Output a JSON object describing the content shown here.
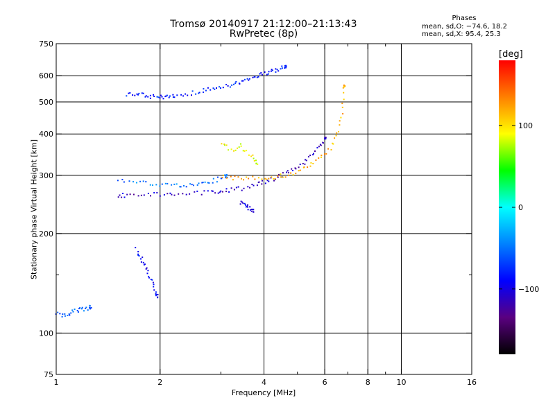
{
  "chart_data": {
    "type": "scatter",
    "title": "Tromsø 20140917 21:12:00–21:13:43",
    "subtitle": "RwPretec (8p)",
    "xlabel": "Frequency [MHz]",
    "ylabel": "Stationary phase Virtual Height [km]",
    "x_scale": "log",
    "y_scale": "log",
    "xlim": [
      1,
      16
    ],
    "ylim": [
      75,
      750
    ],
    "x_ticks": [
      1,
      2,
      4,
      6,
      8,
      10,
      16
    ],
    "x_tick_labels": [
      "1",
      "2",
      "4",
      "6",
      "8",
      "10",
      "16"
    ],
    "x_minor_ticks": [
      3,
      5,
      7,
      9
    ],
    "y_ticks": [
      75,
      100,
      200,
      300,
      400,
      500,
      600,
      750
    ],
    "y_tick_labels": [
      "75",
      "100",
      "200",
      "300",
      "400",
      "500",
      "600",
      "750"
    ],
    "y_minor_ticks": [
      150
    ],
    "grid": true,
    "phase_box": {
      "title": "Phases",
      "line_o": "mean, sd,O: −74.6, 18.2",
      "line_x": "mean, sd,X:  95.4, 25.3"
    },
    "colorbar": {
      "label": "[deg]",
      "min": -180,
      "max": 180,
      "ticks": [
        100,
        0,
        -100
      ],
      "tick_labels": [
        "100",
        "0",
        "−100"
      ],
      "colors": [
        "#000000",
        "#5a0080",
        "#0000ff",
        "#0080ff",
        "#00ffff",
        "#00ff00",
        "#ffff00",
        "#ff8000",
        "#ff0000"
      ]
    },
    "series": [
      {
        "x": [
          1.0,
          1.05,
          1.1,
          1.15,
          1.2,
          1.25
        ],
        "y": [
          115,
          113,
          116,
          118,
          119,
          120
        ],
        "color_value": -60
      },
      {
        "x": [
          1.6,
          1.7,
          1.8,
          1.9,
          2.0,
          2.1,
          2.2,
          2.4,
          2.6,
          2.8,
          3.0,
          3.2,
          3.4,
          3.6,
          3.8,
          4.0,
          4.2,
          4.4,
          4.6
        ],
        "y": [
          530,
          530,
          525,
          522,
          520,
          522,
          526,
          532,
          540,
          548,
          555,
          565,
          575,
          588,
          600,
          612,
          622,
          632,
          640
        ],
        "color_value": -80
      },
      {
        "x": [
          1.5,
          1.6,
          1.8,
          2.0,
          2.2,
          2.5,
          2.8,
          3.0,
          3.2,
          3.5,
          3.8,
          4.0,
          4.3,
          4.6,
          4.9,
          5.2,
          5.5,
          5.8,
          6.0
        ],
        "y": [
          262,
          262,
          263,
          264,
          265,
          266,
          268,
          270,
          272,
          276,
          282,
          288,
          296,
          305,
          316,
          330,
          348,
          372,
          392
        ],
        "color_value": -110
      },
      {
        "x": [
          1.5,
          1.7,
          1.9,
          2.1,
          2.3,
          2.5,
          2.7,
          2.9,
          3.1
        ],
        "y": [
          290,
          288,
          283,
          281,
          281,
          282,
          286,
          292,
          300
        ],
        "color_value": -50
      },
      {
        "x": [
          3.0,
          3.3,
          3.6,
          4.0,
          4.3,
          4.6,
          5.0,
          5.4,
          5.8,
          6.2,
          6.5,
          6.7,
          6.8
        ],
        "y": [
          298,
          296,
          295,
          296,
          298,
          302,
          310,
          322,
          340,
          365,
          400,
          460,
          560
        ],
        "color_value": 120
      },
      {
        "x": [
          1.7,
          1.75,
          1.8,
          1.85,
          1.9,
          1.95
        ],
        "y": [
          180,
          170,
          160,
          150,
          140,
          130
        ],
        "color_value": -90
      },
      {
        "x": [
          3.4,
          3.5,
          3.6,
          3.7
        ],
        "y": [
          250,
          245,
          240,
          235
        ],
        "color_value": -100
      },
      {
        "x": [
          3.0,
          3.2,
          3.4,
          3.6,
          3.8
        ],
        "y": [
          380,
          360,
          370,
          350,
          330
        ],
        "color_value": 90
      }
    ]
  }
}
